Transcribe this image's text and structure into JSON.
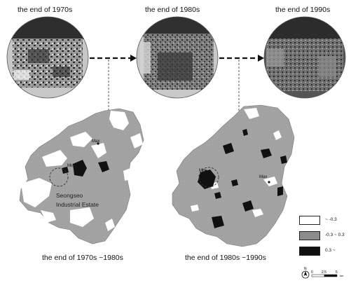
{
  "circle_titles": [
    "the end of 1970s",
    "the end of 1980s",
    "the end of 1990s"
  ],
  "panel_titles": [
    "the end of 1970s ~1980s",
    "the end of 1980s ~1990s"
  ],
  "map_labels": {
    "max": "Max",
    "min": "Min",
    "site_line1": "Seongseo",
    "site_line2": "Industrial Estate"
  },
  "legend": {
    "items": [
      {
        "label": "~ -0.3",
        "color": "#ffffff"
      },
      {
        "label": "-0.3 ~ 0.3",
        "color": "#8c8c8c"
      },
      {
        "label": "0.3 ~",
        "color": "#101010"
      }
    ]
  },
  "scale": {
    "north": "N",
    "ticks": [
      "0",
      "2.5",
      "5"
    ],
    "unit": "km"
  },
  "colors": {
    "dark": "#2e2e2e",
    "gray": "#9a9a9a",
    "light_gray": "#c8c8c8",
    "white": "#ffffff"
  }
}
